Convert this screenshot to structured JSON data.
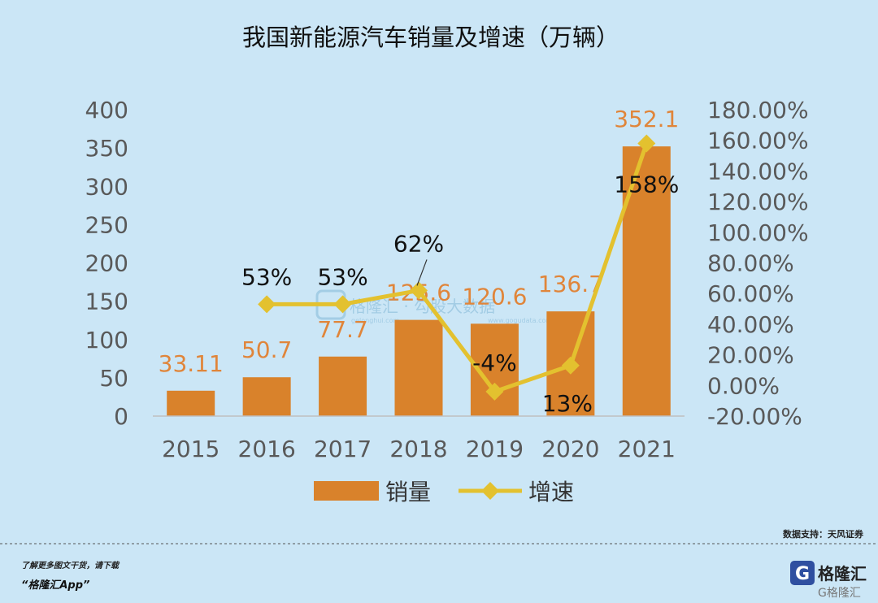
{
  "chart_data": {
    "type": "bar",
    "title": "我国新能源汽车销量及增速（万辆）",
    "categories": [
      "2015",
      "2016",
      "2017",
      "2018",
      "2019",
      "2020",
      "2021"
    ],
    "series": [
      {
        "name": "销量",
        "type": "bar",
        "axis": "left",
        "values": [
          33.11,
          50.7,
          77.7,
          125.6,
          120.6,
          136.7,
          352.1
        ],
        "labels": [
          "33.11",
          "50.7",
          "77.7",
          "125.6",
          "120.6",
          "136.7",
          "352.1"
        ]
      },
      {
        "name": "增速",
        "type": "line",
        "axis": "right",
        "values": [
          null,
          53,
          53,
          62,
          -4,
          13,
          158
        ],
        "labels": [
          "",
          "53%",
          "53%",
          "62%",
          "-4%",
          "13%",
          "158%"
        ]
      }
    ],
    "y_left": {
      "ylim": [
        0,
        400
      ],
      "ticks": [
        "0",
        "50",
        "100",
        "150",
        "200",
        "250",
        "300",
        "350",
        "400"
      ]
    },
    "y_right": {
      "ylim": [
        -20,
        180
      ],
      "ticks": [
        "-20.00%",
        "0.00%",
        "20.00%",
        "40.00%",
        "60.00%",
        "80.00%",
        "100.00%",
        "120.00%",
        "140.00%",
        "160.00%",
        "180.00%"
      ]
    },
    "grid": false,
    "legend": "bottom",
    "colors": {
      "bar": "#d9822b",
      "line": "#e3c12f",
      "bar_label": "#e0853a",
      "background": "#cbe6f6"
    }
  },
  "watermark": {
    "text": "格隆汇 · 勾股大数据",
    "url": "www.gogudata.com",
    "url2": "gelonghui.com"
  },
  "source": "数据支持：天风证券",
  "footer": {
    "line1": "了解更多图文干货，请下载",
    "line2": "“格隆汇App”",
    "brand": "格隆汇",
    "brand_mark": "G",
    "brand_watermark": "G格隆汇"
  }
}
